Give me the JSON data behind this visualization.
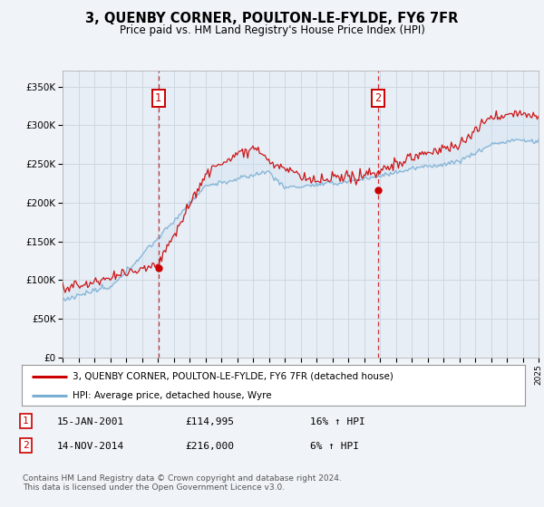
{
  "title": "3, QUENBY CORNER, POULTON-LE-FYLDE, FY6 7FR",
  "subtitle": "Price paid vs. HM Land Registry's House Price Index (HPI)",
  "xlim_years": [
    1995,
    2025
  ],
  "ylim": [
    0,
    370000
  ],
  "yticks": [
    0,
    50000,
    100000,
    150000,
    200000,
    250000,
    300000,
    350000
  ],
  "ytick_labels": [
    "£0",
    "£50K",
    "£100K",
    "£150K",
    "£200K",
    "£250K",
    "£300K",
    "£350K"
  ],
  "background_color": "#f0f4f8",
  "plot_bg_color": "#e8eef5",
  "grid_color": "#c8d4e0",
  "fill_color": "#cce0f0",
  "sale1_date": 2001.04,
  "sale1_price": 114995,
  "sale1_label": "1",
  "sale2_date": 2014.87,
  "sale2_price": 216000,
  "sale2_label": "2",
  "legend_line1": "3, QUENBY CORNER, POULTON-LE-FYLDE, FY6 7FR (detached house)",
  "legend_line2": "HPI: Average price, detached house, Wyre",
  "note1_label": "1",
  "note1_date": "15-JAN-2001",
  "note1_price": "£114,995",
  "note1_hpi": "16% ↑ HPI",
  "note2_label": "2",
  "note2_date": "14-NOV-2014",
  "note2_price": "£216,000",
  "note2_hpi": "6% ↑ HPI",
  "footer": "Contains HM Land Registry data © Crown copyright and database right 2024.\nThis data is licensed under the Open Government Licence v3.0.",
  "sale_color": "#cc0000",
  "hpi_color": "#7aafd4",
  "vline_color": "#cc0000",
  "marker_box_color": "#cc0000"
}
